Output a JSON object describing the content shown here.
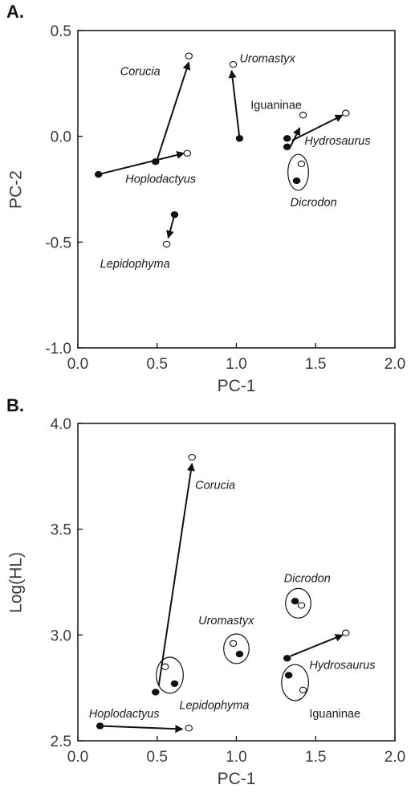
{
  "chart_data": [
    {
      "panel": "A.",
      "type": "scatter",
      "xlabel": "PC-1",
      "ylabel": "PC-2",
      "xlim": [
        0.0,
        2.0
      ],
      "ylim": [
        -1.0,
        0.5
      ],
      "xticks": [
        "0.0",
        "0.5",
        "1.0",
        "1.5",
        "2.0"
      ],
      "yticks": [
        "0.5",
        "0.0",
        "-0.5",
        "-1.0"
      ],
      "points": [
        {
          "x": 0.13,
          "y": -0.18,
          "fill": "filled"
        },
        {
          "x": 0.69,
          "y": -0.08,
          "fill": "open"
        },
        {
          "x": 0.49,
          "y": -0.12,
          "fill": "filled"
        },
        {
          "x": 0.7,
          "y": 0.38,
          "fill": "open"
        },
        {
          "x": 1.02,
          "y": -0.01,
          "fill": "filled"
        },
        {
          "x": 0.98,
          "y": 0.34,
          "fill": "open"
        },
        {
          "x": 0.61,
          "y": -0.37,
          "fill": "filled"
        },
        {
          "x": 0.56,
          "y": -0.51,
          "fill": "open"
        },
        {
          "x": 1.32,
          "y": -0.01,
          "fill": "filled"
        },
        {
          "x": 1.42,
          "y": 0.1,
          "fill": "open"
        },
        {
          "x": 1.32,
          "y": -0.05,
          "fill": "filled"
        },
        {
          "x": 1.69,
          "y": 0.11,
          "fill": "open"
        },
        {
          "x": 1.38,
          "y": -0.21,
          "fill": "filled"
        },
        {
          "x": 1.41,
          "y": -0.13,
          "fill": "open"
        }
      ],
      "arrows": [
        {
          "from": [
            0.13,
            -0.18
          ],
          "to": [
            0.67,
            -0.08
          ]
        },
        {
          "from": [
            0.5,
            -0.11
          ],
          "to": [
            0.7,
            0.35
          ]
        },
        {
          "from": [
            1.02,
            -0.01
          ],
          "to": [
            0.97,
            0.31
          ]
        },
        {
          "from": [
            0.61,
            -0.37
          ],
          "to": [
            0.57,
            -0.48
          ]
        },
        {
          "from": [
            1.34,
            -0.05
          ],
          "to": [
            1.4,
            0.04
          ]
        },
        {
          "from": [
            1.35,
            -0.02
          ],
          "to": [
            1.67,
            0.1
          ]
        }
      ],
      "groups": [
        {
          "cx": 1.39,
          "cy": -0.17,
          "rx": 0.065,
          "ry": 0.085
        }
      ],
      "labels": [
        {
          "text": "Corucia",
          "x": 0.52,
          "y": 0.29,
          "italic": true,
          "anchor": "end"
        },
        {
          "text": "Uromastyx",
          "x": 1.02,
          "y": 0.35,
          "italic": true,
          "anchor": "start"
        },
        {
          "text": "Iguaninae",
          "x": 1.09,
          "y": 0.13,
          "italic": false,
          "anchor": "start"
        },
        {
          "text": "Hydrosaurus",
          "x": 1.43,
          "y": -0.04,
          "italic": true,
          "anchor": "start"
        },
        {
          "text": "Hoplodactyus",
          "x": 0.3,
          "y": -0.22,
          "italic": true,
          "anchor": "start"
        },
        {
          "text": "Dicrodon",
          "x": 1.34,
          "y": -0.33,
          "italic": true,
          "anchor": "start"
        },
        {
          "text": "Lepidophyma",
          "x": 0.14,
          "y": -0.62,
          "italic": true,
          "anchor": "start"
        }
      ]
    },
    {
      "panel": "B.",
      "type": "scatter",
      "xlabel": "PC-1",
      "ylabel": "Log(HL)",
      "xlim": [
        0.0,
        2.0
      ],
      "ylim": [
        2.5,
        4.0
      ],
      "xticks": [
        "0.0",
        "0.5",
        "1.0",
        "1.5",
        "2.0"
      ],
      "yticks": [
        "4.0",
        "3.5",
        "3.0",
        "2.5"
      ],
      "points": [
        {
          "x": 0.14,
          "y": 2.57,
          "fill": "filled"
        },
        {
          "x": 0.7,
          "y": 2.56,
          "fill": "open"
        },
        {
          "x": 0.49,
          "y": 2.73,
          "fill": "filled"
        },
        {
          "x": 0.72,
          "y": 3.84,
          "fill": "open"
        },
        {
          "x": 0.55,
          "y": 2.85,
          "fill": "open"
        },
        {
          "x": 0.61,
          "y": 2.77,
          "fill": "filled"
        },
        {
          "x": 0.98,
          "y": 2.96,
          "fill": "open"
        },
        {
          "x": 1.02,
          "y": 2.91,
          "fill": "filled"
        },
        {
          "x": 1.37,
          "y": 3.16,
          "fill": "filled"
        },
        {
          "x": 1.41,
          "y": 3.14,
          "fill": "open"
        },
        {
          "x": 1.32,
          "y": 2.89,
          "fill": "filled"
        },
        {
          "x": 1.69,
          "y": 3.01,
          "fill": "open"
        },
        {
          "x": 1.33,
          "y": 2.81,
          "fill": "filled"
        },
        {
          "x": 1.42,
          "y": 2.74,
          "fill": "open"
        }
      ],
      "arrows": [
        {
          "from": [
            0.14,
            2.57
          ],
          "to": [
            0.66,
            2.555
          ]
        },
        {
          "from": [
            0.51,
            2.76
          ],
          "to": [
            0.72,
            3.81
          ]
        },
        {
          "from": [
            1.34,
            2.9
          ],
          "to": [
            1.67,
            3.0
          ]
        }
      ],
      "groups": [
        {
          "cx": 0.58,
          "cy": 2.81,
          "rx": 0.085,
          "ry": 0.085
        },
        {
          "cx": 1.0,
          "cy": 2.935,
          "rx": 0.08,
          "ry": 0.07
        },
        {
          "cx": 1.39,
          "cy": 3.15,
          "rx": 0.08,
          "ry": 0.07
        },
        {
          "cx": 1.37,
          "cy": 2.775,
          "rx": 0.085,
          "ry": 0.085
        }
      ],
      "labels": [
        {
          "text": "Corucia",
          "x": 0.74,
          "y": 3.69,
          "italic": true,
          "anchor": "start"
        },
        {
          "text": "Dicrodon",
          "x": 1.3,
          "y": 3.25,
          "italic": true,
          "anchor": "start"
        },
        {
          "text": "Uromastyx",
          "x": 0.76,
          "y": 3.05,
          "italic": true,
          "anchor": "start"
        },
        {
          "text": "Hydrosaurus",
          "x": 1.46,
          "y": 2.84,
          "italic": true,
          "anchor": "start"
        },
        {
          "text": "Lepidophyma",
          "x": 0.64,
          "y": 2.65,
          "italic": true,
          "anchor": "start"
        },
        {
          "text": "Iguaninae",
          "x": 1.46,
          "y": 2.61,
          "italic": false,
          "anchor": "start"
        },
        {
          "text": "Hoplodactyus",
          "x": 0.07,
          "y": 2.61,
          "italic": true,
          "anchor": "start"
        }
      ]
    }
  ]
}
